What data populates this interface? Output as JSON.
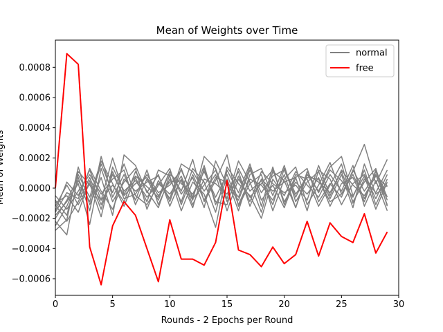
{
  "chart_data": {
    "type": "line",
    "title": "Mean of Weights over Time",
    "xlabel": "Rounds - 2 Epochs per Round",
    "ylabel": "Mean of Weights",
    "xlim": [
      0,
      30
    ],
    "ylim": [
      -0.00071,
      0.00098
    ],
    "x_ticks": [
      0,
      5,
      10,
      15,
      20,
      25,
      30
    ],
    "y_ticks": [
      -0.0006,
      -0.0004,
      -0.0002,
      0.0,
      0.0002,
      0.0004,
      0.0006,
      0.0008
    ],
    "y_tick_labels": [
      "−0.0006",
      "−0.0004",
      "−0.0002",
      "0.0000",
      "0.0002",
      "0.0004",
      "0.0006",
      "0.0008"
    ],
    "grid": false,
    "legend_position": "top-right",
    "legend": [
      {
        "label": "normal",
        "color": "#808080"
      },
      {
        "label": "free",
        "color": "#ff0000"
      }
    ],
    "x": [
      0,
      1,
      2,
      3,
      4,
      5,
      6,
      7,
      8,
      9,
      10,
      11,
      12,
      13,
      14,
      15,
      16,
      17,
      18,
      19,
      20,
      21,
      22,
      23,
      24,
      25,
      26,
      27,
      28,
      29
    ],
    "series": [
      {
        "group": "normal",
        "color": "#808080",
        "values": [
          -0.00015,
          4e-05,
          -5e-05,
          0.00012,
          -8e-05,
          0.0002,
          -4e-05,
          8e-05,
          1e-05,
          -6e-05,
          0.00011,
          -2e-05,
          0.00019,
          -9e-05,
          5e-05,
          0.00022,
          -0.00012,
          3e-05,
          9e-05,
          -0.00015,
          6e-05,
          0.00014,
          -0.00011,
          2e-05,
          0.00017,
          -4e-05,
          0.00011,
          0.00029,
          3e-05,
          0.00019
        ]
      },
      {
        "group": "normal",
        "color": "#808080",
        "values": [
          -0.00028,
          -0.00021,
          0.00014,
          -0.00011,
          7e-05,
          -0.00018,
          0.00022,
          0.00015,
          -3e-05,
          9e-05,
          -0.00012,
          6e-05,
          -8e-05,
          0.00021,
          0.00013,
          -7e-05,
          0.00018,
          4e-05,
          -0.00016,
          0.00011,
          5e-05,
          -0.00013,
          9e-05,
          -2e-05,
          0.00014,
          0.00021,
          -5e-05,
          8e-05,
          -0.00014,
          4e-05
        ]
      },
      {
        "group": "normal",
        "color": "#808080",
        "values": [
          -0.00022,
          -0.00031,
          9e-05,
          -6e-05,
          0.00018,
          3e-05,
          -0.00012,
          7e-05,
          -9e-05,
          0.00012,
          8e-05,
          -0.00015,
          4e-05,
          -4e-05,
          -0.00026,
          0.00012,
          -3e-05,
          0.00016,
          -8e-05,
          2e-05,
          -0.00013,
          7e-05,
          0.00013,
          -9e-05,
          3e-05,
          -6e-05,
          0.00012,
          -2e-05,
          9e-05,
          -0.00011
        ]
      },
      {
        "group": "normal",
        "color": "#808080",
        "values": [
          -0.0001,
          -5e-05,
          -0.00016,
          5e-05,
          -0.00014,
          0.00011,
          -7e-05,
          -4e-05,
          9e-05,
          -3e-05,
          2e-05,
          0.00012,
          -6e-05,
          0.00015,
          -0.00011,
          6e-05,
          -0.00015,
          9e-05,
          0.00013,
          -5e-05,
          0.00015,
          -9e-05,
          4e-05,
          0.00011,
          -7e-05,
          9e-05,
          -0.00013,
          0.00016,
          -4e-05,
          2e-05
        ]
      },
      {
        "group": "normal",
        "color": "#808080",
        "values": [
          -0.00018,
          -9e-05,
          3e-05,
          -0.00024,
          0.00013,
          -9e-05,
          4e-05,
          0.00013,
          -0.00014,
          5e-05,
          -7e-05,
          0.00016,
          0.00011,
          -2e-05,
          9e-05,
          -0.00015,
          6e-05,
          -6e-05,
          3e-05,
          0.00012,
          -9e-05,
          4e-05,
          -4e-05,
          7e-05,
          -0.00012,
          3e-05,
          7e-05,
          -9e-05,
          0.00012,
          -6e-05
        ]
      },
      {
        "group": "normal",
        "color": "#808080",
        "values": [
          -5e-05,
          -0.00014,
          -2e-05,
          9e-05,
          -4e-05,
          6e-05,
          0.00012,
          -0.00011,
          6e-05,
          -8e-05,
          0.00011,
          -4e-05,
          7e-05,
          -0.00013,
          0.00018,
          2e-05,
          -8e-05,
          0.00012,
          -3e-05,
          8e-05,
          0.00012,
          -6e-05,
          9e-05,
          4e-05,
          -3e-05,
          0.00011,
          -9e-05,
          4e-05,
          0.00013,
          -0.00012
        ]
      },
      {
        "group": "normal",
        "color": "#808080",
        "values": [
          -0.00012,
          2e-05,
          -0.00011,
          3e-05,
          -0.00019,
          0.00014,
          -2e-05,
          5e-05,
          -6e-05,
          3e-05,
          -4e-05,
          8e-05,
          -0.00011,
          6e-05,
          3e-05,
          -4e-05,
          0.00011,
          -0.00012,
          6e-05,
          -2e-05,
          4e-05,
          7e-05,
          -0.00015,
          0.00012,
          6e-05,
          -0.00011,
          3e-05,
          9e-05,
          -7e-05,
          9e-05
        ]
      },
      {
        "group": "normal",
        "color": "#808080",
        "values": [
          -0.0002,
          -8e-05,
          7e-05,
          -0.00015,
          0.00021,
          -6e-05,
          9e-05,
          -8e-05,
          0.00012,
          -0.00011,
          6e-05,
          -9e-05,
          0.00013,
          4e-05,
          -0.00016,
          0.00014,
          3e-05,
          -5e-05,
          -0.0002,
          6e-05,
          -5e-05,
          0.00011,
          2e-05,
          -6e-05,
          9e-05,
          -2e-05,
          0.00015,
          -0.00012,
          5e-05,
          -0.00015
        ]
      },
      {
        "group": "normal",
        "color": "#808080",
        "values": [
          -8e-05,
          -0.00018,
          0.00011,
          2e-05,
          -8e-05,
          2e-05,
          -9e-05,
          0.00011,
          -2e-05,
          -0.00013,
          9e-05,
          3e-05,
          -4e-05,
          0.00011,
          -6e-05,
          9e-05,
          -0.00011,
          6e-05,
          2e-05,
          -8e-05,
          9e-05,
          -0.00013,
          0.00011,
          -3e-05,
          0.00012,
          5e-05,
          -6e-05,
          0.00012,
          -0.00011,
          6e-05
        ]
      },
      {
        "group": "normal",
        "color": "#808080",
        "values": [
          -0.00016,
          -3e-05,
          -7e-05,
          0.00013,
          -2e-05,
          -0.00014,
          6e-05,
          -2e-05,
          4e-05,
          8e-05,
          -9e-05,
          0.00013,
          -7e-05,
          2e-05,
          0.00012,
          -9e-05,
          8e-05,
          -9e-05,
          0.00011,
          3e-05,
          -3e-05,
          2e-05,
          -8e-05,
          0.00015,
          -5e-05,
          0.00012,
          2e-05,
          -5e-05,
          8e-05,
          1e-05
        ]
      },
      {
        "group": "normal",
        "color": "#808080",
        "values": [
          -0.00025,
          -0.00012,
          5e-05,
          -9e-05,
          0.00016,
          -3e-05,
          0.00016,
          -5e-05,
          -0.00011,
          2e-05,
          0.00013,
          -0.00011,
          9e-05,
          -8e-05,
          7e-05,
          4e-05,
          -6e-05,
          0.00014,
          -0.00012,
          0.00014,
          -0.00011,
          9e-05,
          6e-05,
          -0.00012,
          2e-05,
          0.00016,
          -0.0001,
          6e-05,
          -3e-05,
          0.00012
        ]
      },
      {
        "group": "normal",
        "color": "#808080",
        "values": [
          -0.00011,
          -0.00022,
          -9e-05,
          7e-05,
          -0.00011,
          9e-05,
          -5e-05,
          3e-05,
          7e-05,
          -5e-05,
          4e-05,
          5e-05,
          -0.00013,
          0.00013,
          -9e-05,
          -0.00011,
          0.00013,
          -2e-05,
          5e-05,
          -0.00011,
          0.00013,
          -4e-05,
          7e-05,
          6e-05,
          -9e-05,
          -4e-05,
          9e-05,
          -7e-05,
          0.00011,
          -8e-05
        ]
      }
    ],
    "free_series": {
      "name": "free",
      "color": "#ff0000",
      "values": [
        0.0,
        0.00089,
        0.00082,
        -0.00039,
        -0.00064,
        -0.00025,
        -9e-05,
        -0.00018,
        -0.0004,
        -0.00062,
        -0.00021,
        -0.00047,
        -0.00047,
        -0.00051,
        -0.00036,
        5e-05,
        -0.00041,
        -0.00044,
        -0.00052,
        -0.00039,
        -0.0005,
        -0.00044,
        -0.00022,
        -0.00045,
        -0.00023,
        -0.00032,
        -0.00036,
        -0.00017,
        -0.00043,
        -0.00029
      ]
    }
  }
}
